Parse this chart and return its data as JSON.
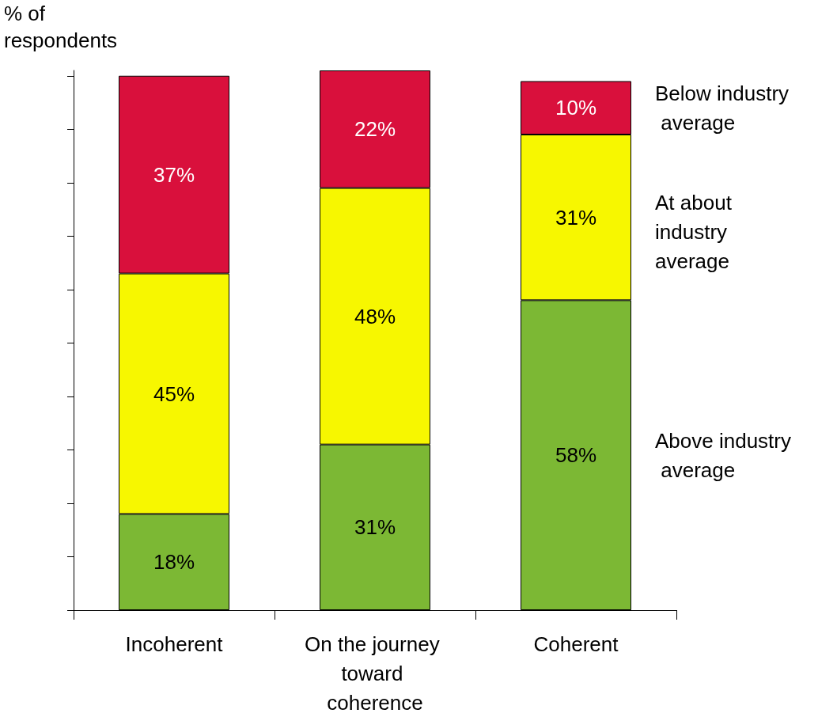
{
  "chart_data": {
    "type": "bar",
    "stacked": true,
    "ylabel": "% of respondents",
    "categories": [
      "Incoherent",
      "On the journey toward coherence",
      "Coherent"
    ],
    "series": [
      {
        "name": "Above industry average",
        "color": "#7cb834",
        "values": [
          18,
          31,
          58
        ],
        "value_labels": [
          "18%",
          "31%",
          "58%"
        ]
      },
      {
        "name": "At about industry average",
        "color": "#f7f700",
        "values": [
          45,
          48,
          31
        ],
        "value_labels": [
          "45%",
          "48%",
          "31%"
        ]
      },
      {
        "name": "Below industry average",
        "color": "#d9103c",
        "values": [
          37,
          22,
          10
        ],
        "value_labels": [
          "37%",
          "22%",
          "10%"
        ]
      }
    ],
    "ylim": [
      0,
      101
    ],
    "yticks": [
      {
        "value": 0,
        "label": null
      },
      {
        "value": 10,
        "label": null
      },
      {
        "value": 20,
        "label": null
      },
      {
        "value": 30,
        "label": null
      },
      {
        "value": 40,
        "label": null
      },
      {
        "value": 50,
        "label": null
      },
      {
        "value": 60,
        "label": null
      },
      {
        "value": 70,
        "label": null
      },
      {
        "value": 80,
        "label": null
      },
      {
        "value": 90,
        "label": null
      },
      {
        "value": 100,
        "label": null
      }
    ],
    "tick_labels": "x",
    "grid": false,
    "legend": false
  }
}
